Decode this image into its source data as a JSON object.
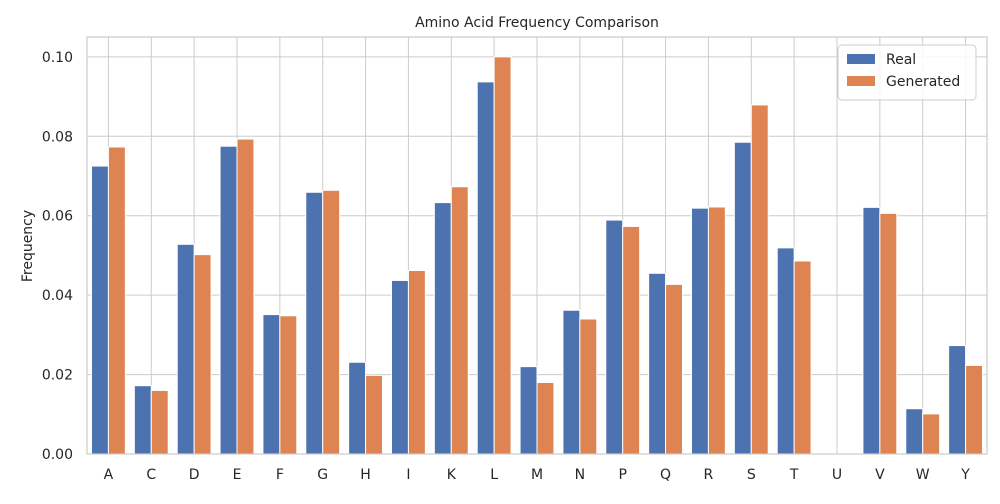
{
  "chart_data": {
    "type": "bar",
    "title": "Amino Acid Frequency Comparison",
    "xlabel": "",
    "ylabel": "Frequency",
    "categories": [
      "A",
      "C",
      "D",
      "E",
      "F",
      "G",
      "H",
      "I",
      "K",
      "L",
      "M",
      "N",
      "P",
      "Q",
      "R",
      "S",
      "T",
      "U",
      "V",
      "W",
      "Y"
    ],
    "series": [
      {
        "name": "Real",
        "color": "#4c72b0",
        "values": [
          0.0725,
          0.0172,
          0.0528,
          0.0775,
          0.0351,
          0.0659,
          0.0231,
          0.0437,
          0.0633,
          0.0937,
          0.022,
          0.0362,
          0.0589,
          0.0455,
          0.0619,
          0.0785,
          0.0519,
          0.0,
          0.0621,
          0.0114,
          0.0273
        ]
      },
      {
        "name": "Generated",
        "color": "#dd8452",
        "values": [
          0.0773,
          0.016,
          0.0502,
          0.0793,
          0.0348,
          0.0664,
          0.0198,
          0.0462,
          0.0673,
          0.1,
          0.018,
          0.034,
          0.0573,
          0.0427,
          0.0622,
          0.0879,
          0.0486,
          0.0,
          0.0606,
          0.0101,
          0.0223
        ]
      }
    ],
    "ylim": [
      0,
      0.105
    ],
    "yticks": [
      0.0,
      0.02,
      0.04,
      0.06,
      0.08,
      0.1
    ],
    "ytick_labels": [
      "0.00",
      "0.02",
      "0.04",
      "0.06",
      "0.08",
      "0.10"
    ],
    "grid": true,
    "legend_position": "top-right"
  }
}
